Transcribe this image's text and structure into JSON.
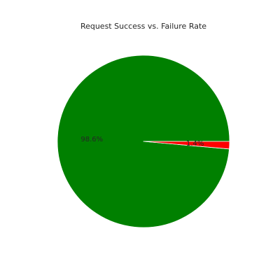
{
  "chart_data": {
    "type": "pie",
    "title": "Request Success vs. Failure Rate",
    "slices": [
      {
        "value": 98.6,
        "label": "98.6%",
        "color": "#008000"
      },
      {
        "value": 1.4,
        "label": "1.4%",
        "color": "#ff0000"
      }
    ],
    "start_angle_deg": 0,
    "direction": "counterclockwise",
    "legend": "none"
  }
}
